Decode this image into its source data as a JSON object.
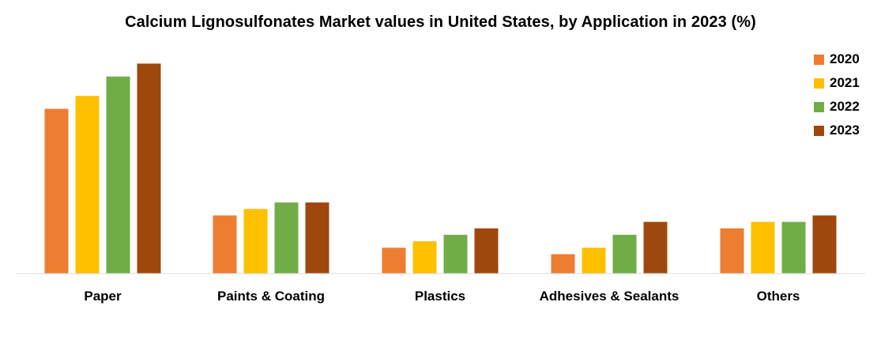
{
  "chart_data": {
    "type": "bar",
    "title": "Calcium Lignosulfonates Market values in United States, by Application in 2023 (%)",
    "xlabel": "",
    "ylabel": "",
    "categories": [
      "Paper",
      "Paints & Coating",
      "Plastics",
      "Adhesives & Sealants",
      "Others"
    ],
    "series": [
      {
        "name": "2020",
        "color": "#ED7D31",
        "values": [
          25.5,
          9.0,
          4.0,
          3.0,
          7.0
        ]
      },
      {
        "name": "2021",
        "color": "#FFC000",
        "values": [
          27.5,
          10.0,
          5.0,
          4.0,
          8.0
        ]
      },
      {
        "name": "2022",
        "color": "#70AD47",
        "values": [
          30.5,
          11.0,
          6.0,
          6.0,
          8.0
        ]
      },
      {
        "name": "2023",
        "color": "#9E480E",
        "values": [
          32.5,
          11.0,
          7.0,
          8.0,
          9.0
        ]
      }
    ],
    "ylim": [
      0,
      35
    ],
    "grid": false,
    "legend": "top-right"
  }
}
